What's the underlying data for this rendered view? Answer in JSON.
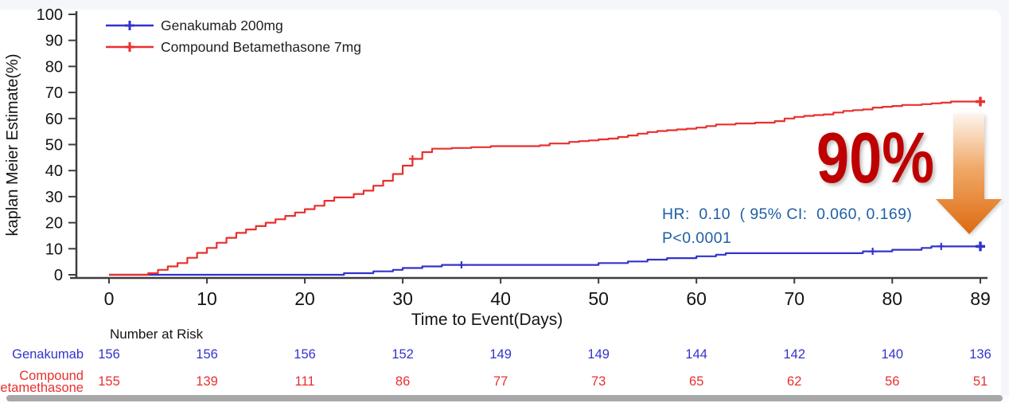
{
  "window": {
    "background": "#f4f6fa",
    "card_background": "#ffffff",
    "bottom_bar_color": "#a8a8a8"
  },
  "chart_data": {
    "type": "line",
    "subtype": "kaplan-meier-step-curves",
    "title": "",
    "xlabel": "Time to Event(Days)",
    "ylabel": "kaplan Meier Estimate(%)",
    "xlim": [
      0,
      89
    ],
    "ylim": [
      0,
      100
    ],
    "x_ticks": [
      0,
      10,
      20,
      30,
      40,
      50,
      60,
      70,
      80,
      89
    ],
    "y_ticks": [
      0,
      10,
      20,
      30,
      40,
      50,
      60,
      70,
      80,
      90,
      100
    ],
    "grid": false,
    "legend_position": "top-left",
    "axis_color": "#3d3d3d",
    "tick_label_color": "#141414",
    "series": [
      {
        "name": "Genakumab 200mg",
        "color": "#3333cc",
        "step": true,
        "points": [
          [
            0,
            0
          ],
          [
            24,
            0.6
          ],
          [
            27,
            1.3
          ],
          [
            29,
            1.9
          ],
          [
            30,
            2.6
          ],
          [
            32,
            3.2
          ],
          [
            34,
            3.8
          ],
          [
            50,
            4.5
          ],
          [
            53,
            5.1
          ],
          [
            55,
            5.8
          ],
          [
            57,
            6.4
          ],
          [
            60,
            7.1
          ],
          [
            62,
            7.7
          ],
          [
            63,
            8.3
          ],
          [
            75,
            8.3
          ],
          [
            77,
            9.0
          ],
          [
            80,
            9.6
          ],
          [
            83,
            10.3
          ],
          [
            84,
            10.9
          ],
          [
            89,
            10.9
          ]
        ],
        "censor_days": [
          36,
          78,
          85,
          89
        ]
      },
      {
        "name": "Compound Betamethasone 7mg",
        "color": "#e8302e",
        "step": true,
        "points": [
          [
            0,
            0
          ],
          [
            4,
            0.6
          ],
          [
            5,
            1.9
          ],
          [
            6,
            3.2
          ],
          [
            7,
            4.5
          ],
          [
            8,
            6.5
          ],
          [
            9,
            8.4
          ],
          [
            10,
            10.3
          ],
          [
            11,
            12.3
          ],
          [
            12,
            14.2
          ],
          [
            13,
            16.1
          ],
          [
            14,
            17.4
          ],
          [
            15,
            18.7
          ],
          [
            16,
            20.0
          ],
          [
            17,
            21.3
          ],
          [
            18,
            22.6
          ],
          [
            19,
            23.9
          ],
          [
            20,
            25.2
          ],
          [
            21,
            26.5
          ],
          [
            22,
            28.4
          ],
          [
            23,
            29.7
          ],
          [
            25,
            31.0
          ],
          [
            26,
            32.3
          ],
          [
            27,
            34.2
          ],
          [
            28,
            36.1
          ],
          [
            29,
            38.7
          ],
          [
            30,
            41.9
          ],
          [
            31,
            44.5
          ],
          [
            32,
            47.1
          ],
          [
            33,
            48.4
          ],
          [
            35,
            48.7
          ],
          [
            37,
            49.0
          ],
          [
            39,
            49.4
          ],
          [
            44,
            49.7
          ],
          [
            45,
            50.4
          ],
          [
            47,
            51.0
          ],
          [
            48,
            51.3
          ],
          [
            49,
            51.6
          ],
          [
            50,
            52.0
          ],
          [
            51,
            52.3
          ],
          [
            52,
            52.9
          ],
          [
            53,
            53.5
          ],
          [
            54,
            54.2
          ],
          [
            55,
            54.8
          ],
          [
            56,
            55.2
          ],
          [
            57,
            55.5
          ],
          [
            58,
            55.8
          ],
          [
            59,
            56.1
          ],
          [
            60,
            56.5
          ],
          [
            61,
            57.1
          ],
          [
            62,
            57.7
          ],
          [
            64,
            58.1
          ],
          [
            66,
            58.4
          ],
          [
            68,
            59.0
          ],
          [
            69,
            60.0
          ],
          [
            70,
            60.6
          ],
          [
            71,
            61.0
          ],
          [
            72,
            61.3
          ],
          [
            73,
            61.6
          ],
          [
            74,
            62.3
          ],
          [
            75,
            62.9
          ],
          [
            76,
            63.2
          ],
          [
            77,
            63.5
          ],
          [
            78,
            64.2
          ],
          [
            79,
            64.5
          ],
          [
            80,
            64.8
          ],
          [
            81,
            65.2
          ],
          [
            83,
            65.5
          ],
          [
            84,
            65.8
          ],
          [
            85,
            66.1
          ],
          [
            86,
            66.5
          ],
          [
            89,
            66.5
          ]
        ],
        "censor_days": [
          31,
          89
        ]
      }
    ],
    "annotations": {
      "hr_text": "HR:  0.10  ( 95% CI:  0.060, 0.169)",
      "p_text": "P<0.0001",
      "stats_color": "#1f5fa5",
      "reduction_label": "90%",
      "reduction_color": "#bf0000",
      "arrow_gradient_top": "#fdf4ec",
      "arrow_gradient_mid": "#f0a968",
      "arrow_gradient_bottom": "#dd6a10"
    },
    "risk_table": {
      "title": "Number at Risk",
      "rows": [
        {
          "label": "Genakumab",
          "label_lines": [
            "Genakumab"
          ],
          "color": "#3333cc",
          "values": [
            "156",
            "156",
            "156",
            "152",
            "149",
            "149",
            "144",
            "142",
            "140",
            "136"
          ]
        },
        {
          "label": "Compound Betamethasone",
          "label_lines": [
            "Compound",
            "Betamethasone"
          ],
          "color": "#e8302e",
          "values": [
            "155",
            "139",
            "111",
            "86",
            "77",
            "73",
            "65",
            "62",
            "56",
            "51"
          ]
        }
      ]
    }
  }
}
